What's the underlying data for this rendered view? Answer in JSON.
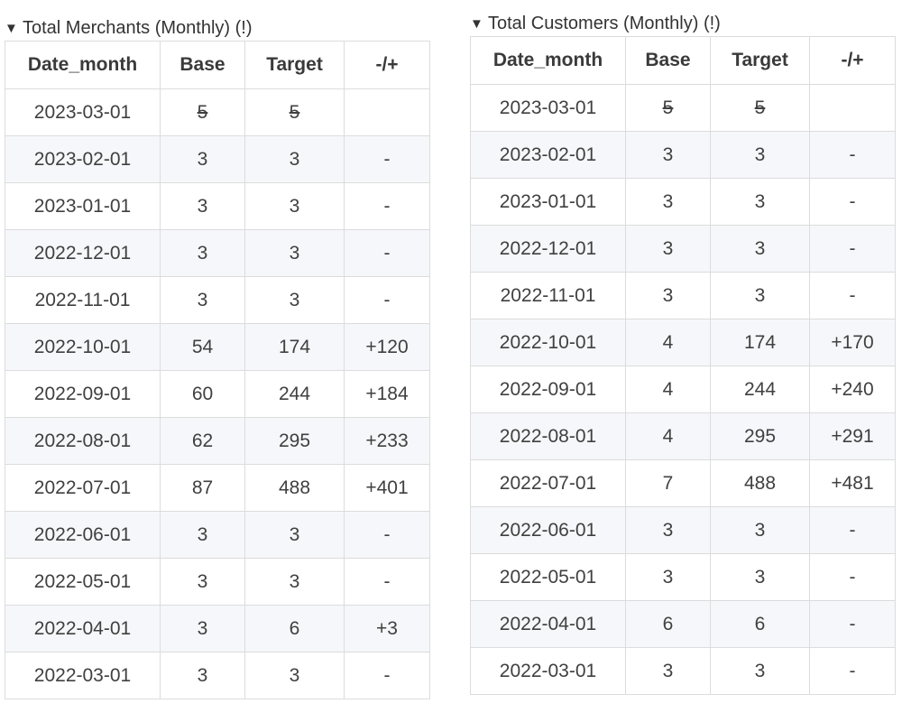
{
  "tables": [
    {
      "title": "Total Merchants (Monthly) (!)",
      "columns": [
        "Date_month",
        "Base",
        "Target",
        "-/+"
      ],
      "rows": [
        {
          "date": "2023-03-01",
          "base": "5",
          "target": "5",
          "diff": "",
          "strike": true
        },
        {
          "date": "2023-02-01",
          "base": "3",
          "target": "3",
          "diff": "-",
          "strike": false
        },
        {
          "date": "2023-01-01",
          "base": "3",
          "target": "3",
          "diff": "-",
          "strike": false
        },
        {
          "date": "2022-12-01",
          "base": "3",
          "target": "3",
          "diff": "-",
          "strike": false
        },
        {
          "date": "2022-11-01",
          "base": "3",
          "target": "3",
          "diff": "-",
          "strike": false
        },
        {
          "date": "2022-10-01",
          "base": "54",
          "target": "174",
          "diff": "+120",
          "strike": false
        },
        {
          "date": "2022-09-01",
          "base": "60",
          "target": "244",
          "diff": "+184",
          "strike": false
        },
        {
          "date": "2022-08-01",
          "base": "62",
          "target": "295",
          "diff": "+233",
          "strike": false
        },
        {
          "date": "2022-07-01",
          "base": "87",
          "target": "488",
          "diff": "+401",
          "strike": false
        },
        {
          "date": "2022-06-01",
          "base": "3",
          "target": "3",
          "diff": "-",
          "strike": false
        },
        {
          "date": "2022-05-01",
          "base": "3",
          "target": "3",
          "diff": "-",
          "strike": false
        },
        {
          "date": "2022-04-01",
          "base": "3",
          "target": "6",
          "diff": "+3",
          "strike": false
        },
        {
          "date": "2022-03-01",
          "base": "3",
          "target": "3",
          "diff": "-",
          "strike": false
        }
      ]
    },
    {
      "title": "Total Customers (Monthly) (!)",
      "columns": [
        "Date_month",
        "Base",
        "Target",
        "-/+"
      ],
      "rows": [
        {
          "date": "2023-03-01",
          "base": "5",
          "target": "5",
          "diff": "",
          "strike": true
        },
        {
          "date": "2023-02-01",
          "base": "3",
          "target": "3",
          "diff": "-",
          "strike": false
        },
        {
          "date": "2023-01-01",
          "base": "3",
          "target": "3",
          "diff": "-",
          "strike": false
        },
        {
          "date": "2022-12-01",
          "base": "3",
          "target": "3",
          "diff": "-",
          "strike": false
        },
        {
          "date": "2022-11-01",
          "base": "3",
          "target": "3",
          "diff": "-",
          "strike": false
        },
        {
          "date": "2022-10-01",
          "base": "4",
          "target": "174",
          "diff": "+170",
          "strike": false
        },
        {
          "date": "2022-09-01",
          "base": "4",
          "target": "244",
          "diff": "+240",
          "strike": false
        },
        {
          "date": "2022-08-01",
          "base": "4",
          "target": "295",
          "diff": "+291",
          "strike": false
        },
        {
          "date": "2022-07-01",
          "base": "7",
          "target": "488",
          "diff": "+481",
          "strike": false
        },
        {
          "date": "2022-06-01",
          "base": "3",
          "target": "3",
          "diff": "-",
          "strike": false
        },
        {
          "date": "2022-05-01",
          "base": "3",
          "target": "3",
          "diff": "-",
          "strike": false
        },
        {
          "date": "2022-04-01",
          "base": "6",
          "target": "6",
          "diff": "-",
          "strike": false
        },
        {
          "date": "2022-03-01",
          "base": "3",
          "target": "3",
          "diff": "-",
          "strike": false
        }
      ]
    }
  ],
  "icons": {
    "expanded": "caret-down-icon",
    "expanded_glyph": "▼"
  },
  "colors": {
    "stripe": "#f6f7fa",
    "border": "#dcdcdc",
    "text": "#3a3a3a"
  }
}
